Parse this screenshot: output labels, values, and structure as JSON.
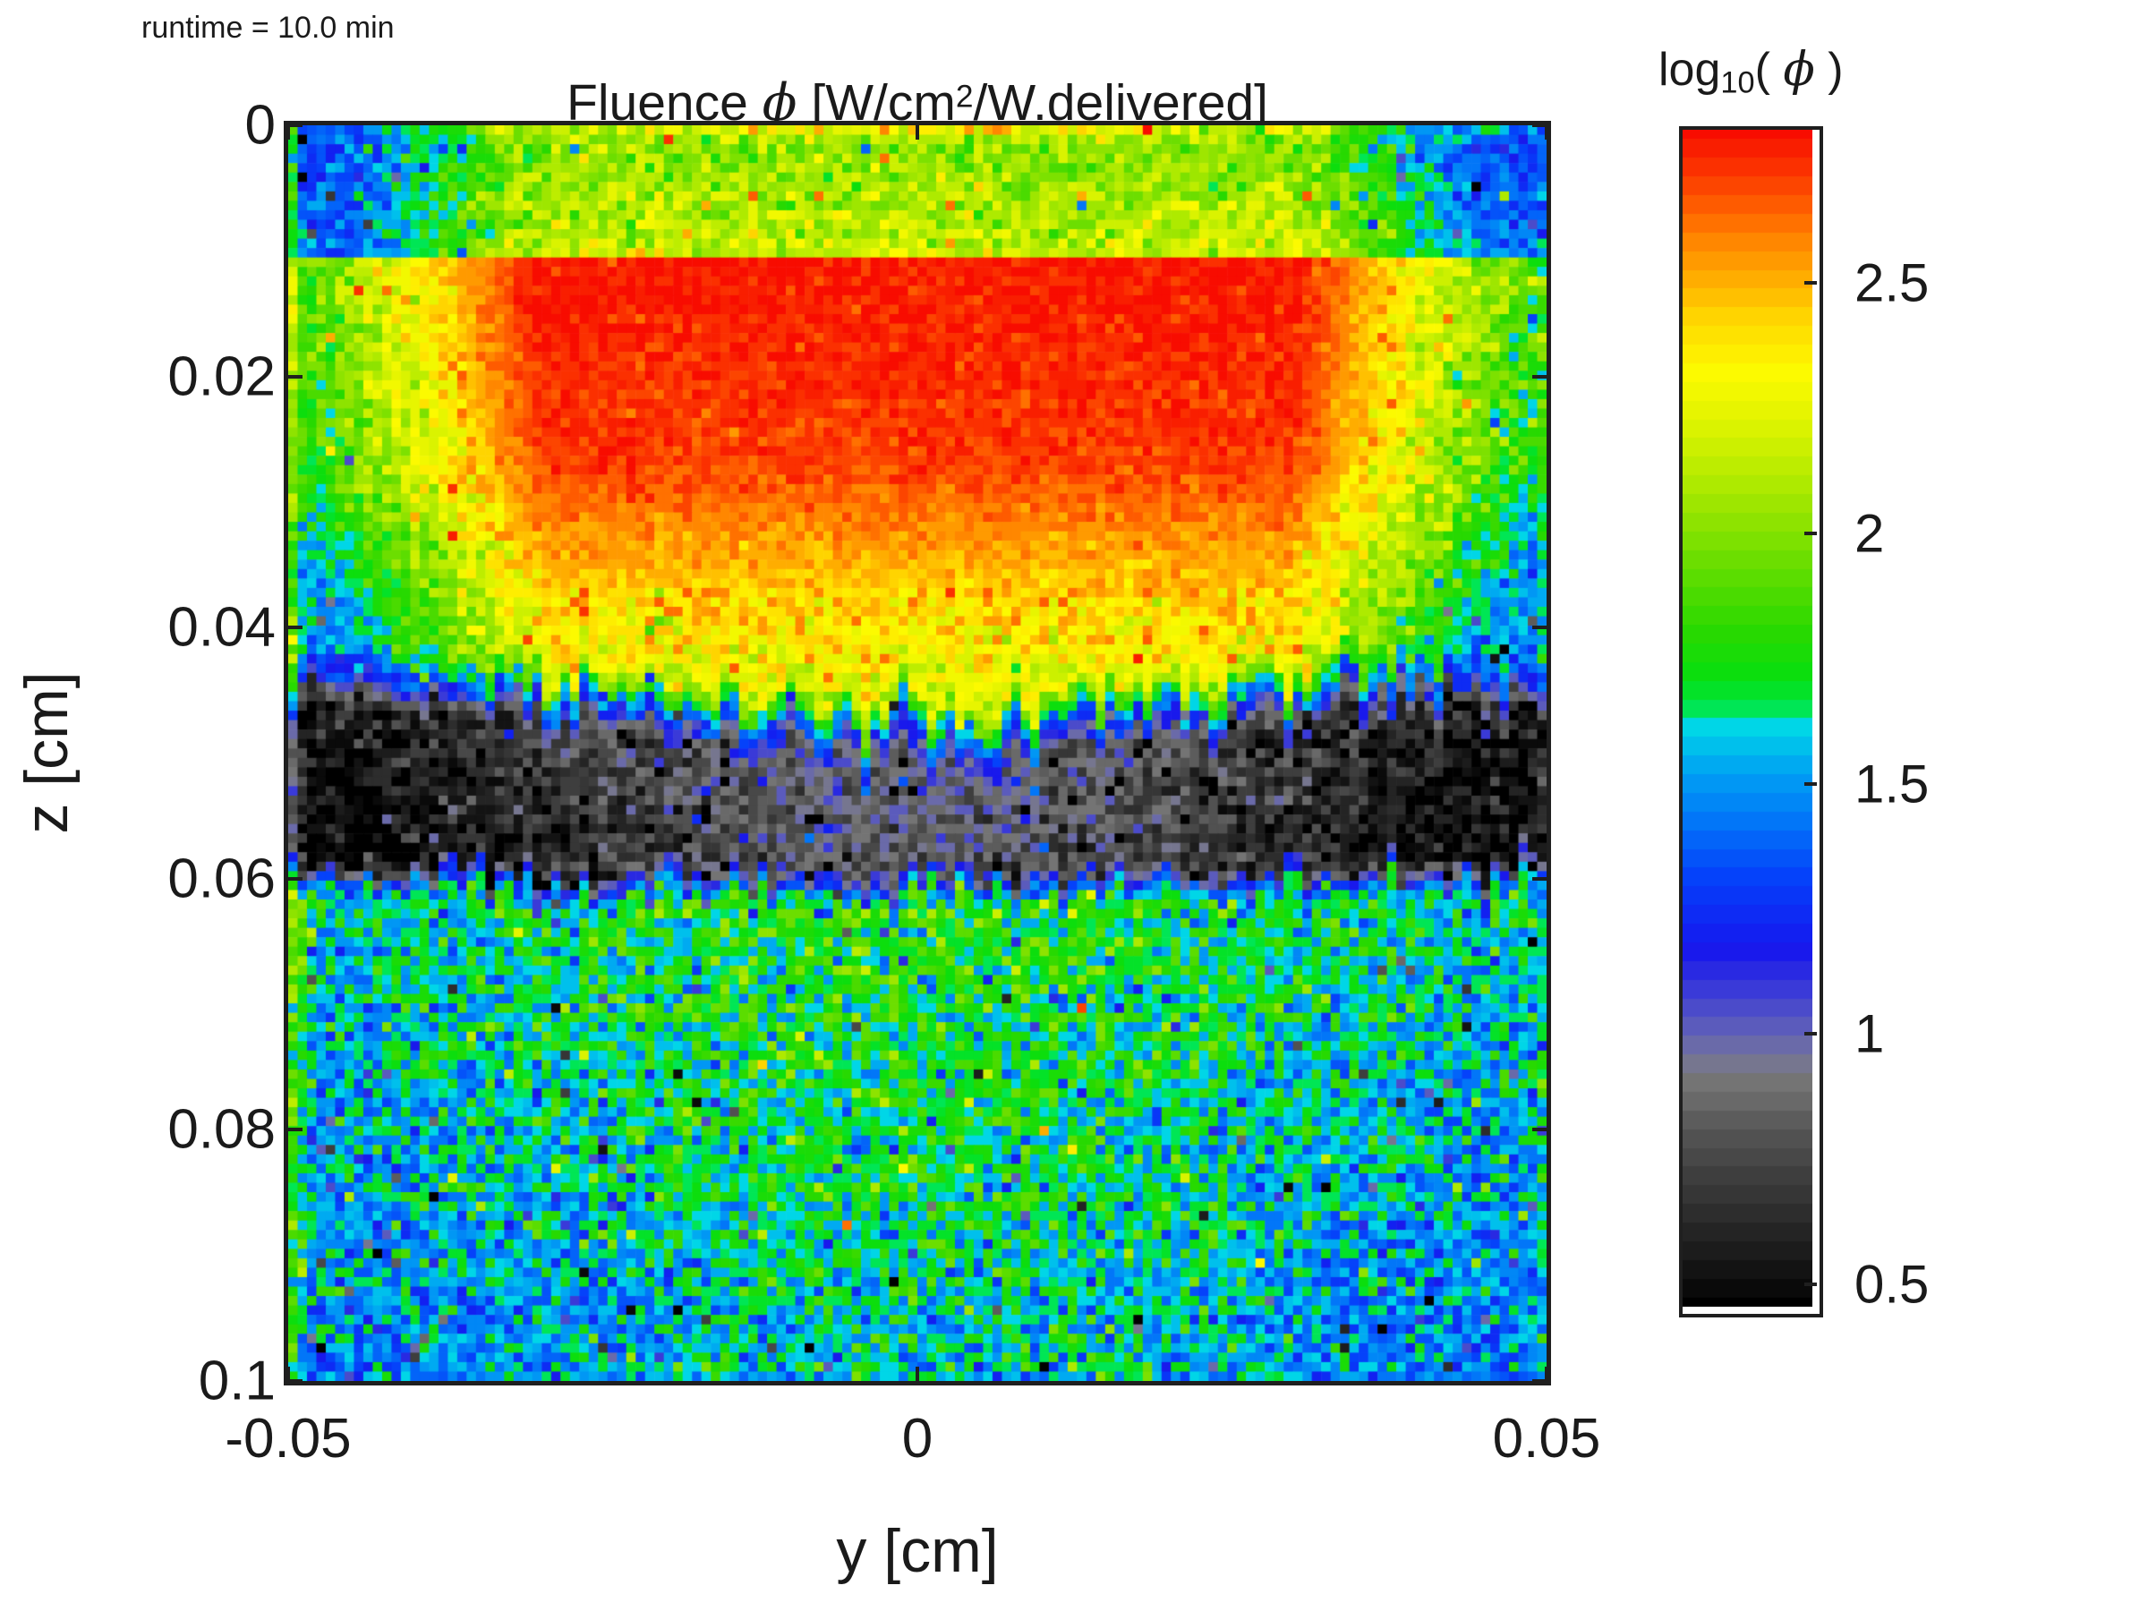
{
  "annotation": {
    "runtime_label": "runtime = 10.0 min"
  },
  "title": {
    "pre": "Fluence ",
    "phi": "ϕ",
    "bracket_pre": " [W/cm",
    "sup": "2",
    "post": "/W.delivered]"
  },
  "axes": {
    "x": {
      "label": "y [cm]",
      "range": [
        -0.05,
        0.05
      ],
      "ticks": [
        -0.05,
        0,
        0.05
      ],
      "tick_labels": [
        "-0.05",
        "0",
        "0.05"
      ]
    },
    "y": {
      "label": "z [cm]",
      "range": [
        0,
        0.1
      ],
      "ticks": [
        0,
        0.02,
        0.04,
        0.06,
        0.08,
        0.1
      ],
      "tick_labels": [
        "0",
        "0.02",
        "0.04",
        "0.06",
        "0.08",
        "0.1"
      ]
    }
  },
  "colorbar": {
    "title_log": "log",
    "title_sub": "10",
    "title_open": "( ",
    "title_phi": "ϕ",
    "title_close": " )",
    "ticks": [
      2.5,
      2,
      1.5,
      1,
      0.5
    ],
    "tick_labels": [
      "2.5",
      "2",
      "1.5",
      "1",
      "0.5"
    ],
    "value_range": [
      0.441,
      2.806
    ],
    "levels": 64
  },
  "chart_data": {
    "type": "heatmap",
    "title": "Fluence ϕ [W/cm2/W.delivered]",
    "annotation": "runtime = 10.0 min",
    "xlabel": "y [cm]",
    "ylabel": "z [cm]",
    "x_range": [
      -0.05,
      0.05
    ],
    "z_range": [
      0,
      0.1
    ],
    "colorbar_label": "log10(ϕ)",
    "colorbar_ticks": [
      0.5,
      1,
      1.5,
      2,
      2.5
    ],
    "value_range": [
      0.441,
      2.806
    ],
    "grid": {
      "cols": 134,
      "rows": 133
    },
    "seed": 987654321,
    "colormap_stops": [
      [
        0.441,
        "#000000"
      ],
      [
        0.52,
        "#141414"
      ],
      [
        0.62,
        "#2b2b2b"
      ],
      [
        0.72,
        "#424242"
      ],
      [
        0.8,
        "#575757"
      ],
      [
        0.86,
        "#6b6b6b"
      ],
      [
        0.905,
        "#787878"
      ],
      [
        0.94,
        "#75759a"
      ],
      [
        1.0,
        "#5d5dbb"
      ],
      [
        1.08,
        "#3a3ad8"
      ],
      [
        1.16,
        "#1616ee"
      ],
      [
        1.3,
        "#0540fa"
      ],
      [
        1.42,
        "#0277f8"
      ],
      [
        1.52,
        "#00a4f2"
      ],
      [
        1.6,
        "#00d3e8"
      ],
      [
        1.632,
        "#00e7e2"
      ],
      [
        1.638,
        "#00e75a"
      ],
      [
        1.7,
        "#06df10"
      ],
      [
        1.8,
        "#2ad900"
      ],
      [
        1.92,
        "#62dd00"
      ],
      [
        2.02,
        "#8fe300"
      ],
      [
        2.12,
        "#b9ec00"
      ],
      [
        2.22,
        "#e0f400"
      ],
      [
        2.32,
        "#fdfa00"
      ],
      [
        2.42,
        "#ffd900"
      ],
      [
        2.5,
        "#ffb000"
      ],
      [
        2.57,
        "#ff8d00"
      ],
      [
        2.64,
        "#ff6400"
      ],
      [
        2.72,
        "#fb3500"
      ],
      [
        2.806,
        "#f80c00"
      ]
    ],
    "field_model": {
      "center_sigma": 0.034,
      "beam": {
        "half_width": 0.0308,
        "top_z": 0.0103,
        "shrink": 0.05,
        "v_top": 2.79,
        "slope1": 5,
        "slope2": 21,
        "knee_z": 0.027
      },
      "above_beam": {
        "v0": 1.98,
        "slope": 18
      },
      "lateral_decay": 52,
      "background_floor": {
        "v0": 1.32,
        "slope": 5
      },
      "band": {
        "z_top_center": 0.0455,
        "z_top_edge_drop": 0.0048,
        "z_bot": 0.0595,
        "z_bot_edge_drop": 0.0012,
        "v_edge": 0.56,
        "v_center_boost": 0.4,
        "depth_slope": 10,
        "strip1_dz": 0.0028,
        "strip1_v": 1.28,
        "strip1_center_boost": 0.08,
        "strip2_dz": 0.0022,
        "jitter_top": 0.0011,
        "jitter_bot": 0.0009
      },
      "deep": {
        "v0": 1.6,
        "center_boost": 0.2,
        "slope": 5.0,
        "trans_dz": 0.0025
      },
      "noise": {
        "core_sigma": 0.05,
        "surface_sigma": 0.12,
        "band_sigma": 0.12,
        "deep_sigma": 0.16,
        "dark_outlier_p": 0.025,
        "dark_outlier_min": 0.35,
        "dark_outlier_max": 1.1,
        "bright_outlier_p": 0.012,
        "bright_outlier_min": 0.22,
        "bright_outlier_max": 0.55,
        "outlier_suppress_above": 2.4
      },
      "edges": {
        "left_col_boost": 0.38,
        "left_col2_boost": 0.12,
        "right_col_boost": 0.1,
        "top_row_boost": 0.25
      }
    },
    "regions": [
      "Red/orange rectangular laser beam core, y -0.03..0.03 cm, z 0.010..0.040 cm, log10(phi) ~2.6-2.8",
      "Yellow fringe bowl under/around beam reaching z ~0.045 cm at center",
      "Green scattered-light glow around beam fading to cyan/blue at lateral edges",
      "Blue strip then dark gray/black absorbing band, z ~0.041-0.059 cm, darkest at left/right edges, lighter gray-blue under beam center",
      "Deep region z 0.06-0.1 cm: noisy cyan/blue speckle with green patches concentrated under beam center"
    ]
  },
  "layout_colors": {
    "axis_line": "#1f1f1f",
    "text": "#1a1a1a",
    "background": "#ffffff"
  }
}
